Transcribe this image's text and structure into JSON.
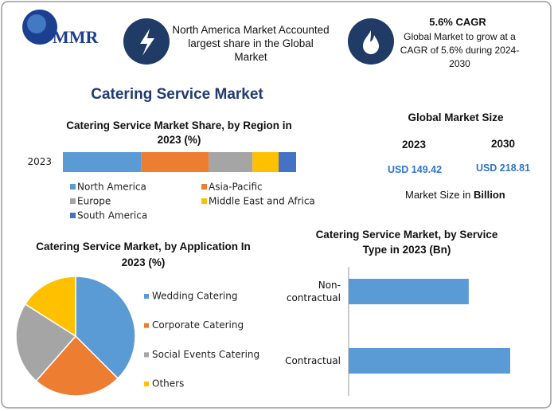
{
  "header": {
    "logo": "MMR",
    "highlight_1": "North America Market Accounted largest share in the Global Market",
    "highlight_2_title": "5.6% CAGR",
    "highlight_2": "Global Market to grow at a CAGR of 5.6% during 2024-2030"
  },
  "title": "Catering Service Market",
  "market_size": {
    "title": "Global Market Size",
    "years": [
      "2023",
      "2030"
    ],
    "values": [
      "USD 149.42",
      "USD 218.81"
    ],
    "note": "Market Size in",
    "note_unit": "Billion"
  },
  "chart_data": [
    {
      "type": "stacked-hbar",
      "title": "Catering Service Market Share, by Region in 2023 (%)",
      "categories": [
        "2023"
      ],
      "series": [
        {
          "name": "North America",
          "color": "#5b9bd5",
          "values": [
            33.5
          ]
        },
        {
          "name": "Asia-Pacific",
          "color": "#ed7d31",
          "values": [
            29
          ]
        },
        {
          "name": "Europe",
          "color": "#a5a5a5",
          "values": [
            18.8
          ]
        },
        {
          "name": "Middle East and Africa",
          "color": "#ffc000",
          "values": [
            11.2
          ]
        },
        {
          "name": "South America",
          "color": "#4472c4",
          "values": [
            7.5
          ]
        }
      ]
    },
    {
      "type": "pie",
      "title": "Catering Service Market, by Application In 2023 (%)",
      "categories": [
        "Wedding Catering",
        "Corporate Catering",
        "Social Events Catering",
        "Others"
      ],
      "values": [
        37.5,
        24,
        22.5,
        16
      ],
      "colors": [
        "#5b9bd5",
        "#ed7d31",
        "#a5a5a5",
        "#ffc000"
      ]
    },
    {
      "type": "hbar",
      "title": "Catering Service Market, by Service Type in 2023 (Bn)",
      "categories": [
        "Non-contractual",
        "Contractual"
      ],
      "values": [
        63.7,
        85.7
      ],
      "color": "#5b9bd5"
    }
  ]
}
